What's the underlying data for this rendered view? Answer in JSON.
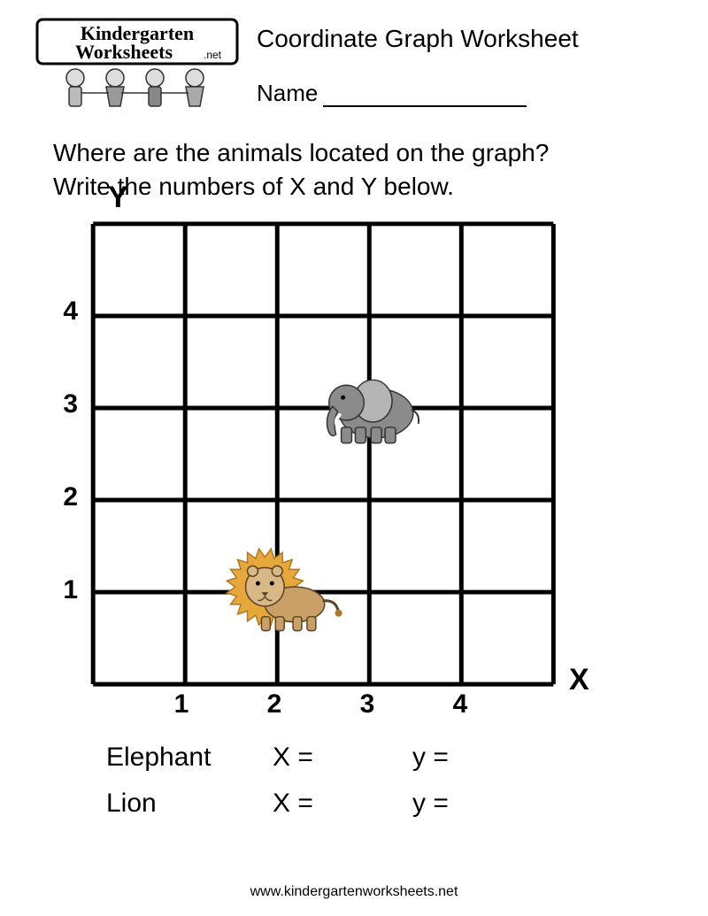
{
  "logo": {
    "top_text": "Kindergarten",
    "bottom_text": "Worksheets",
    "suffix": ".net"
  },
  "title": "Coordinate Graph Worksheet",
  "name_label": "Name",
  "instructions_line1": "Where are the animals located on the graph?",
  "instructions_line2": "Write the numbers of X and Y below.",
  "graph": {
    "y_label": "Y",
    "x_label": "X",
    "cell_size": 105,
    "cols": 5,
    "rows": 5,
    "line_color": "#000000",
    "line_width": 5,
    "background": "#ffffff",
    "y_ticks": [
      "4",
      "3",
      "2",
      "1"
    ],
    "x_ticks": [
      "1",
      "2",
      "3",
      "4"
    ],
    "tick_fontsize": 30,
    "animals": [
      {
        "name": "elephant",
        "grid_x": 3,
        "grid_y": 3,
        "body_color": "#8b8b8b",
        "ear_color": "#b5b5b5",
        "tusk_color": "#ffffff",
        "outline": "#333333"
      },
      {
        "name": "lion",
        "grid_x": 2,
        "grid_y": 1,
        "body_color": "#c9a065",
        "mane_color": "#e6a83a",
        "mane_outline": "#b07820",
        "face_color": "#d8b887",
        "outline": "#5a4326"
      }
    ]
  },
  "answers": {
    "rows": [
      {
        "label": "Elephant",
        "x_prefix": "X =",
        "y_prefix": "y ="
      },
      {
        "label": "Lion",
        "x_prefix": "X =",
        "y_prefix": "y ="
      }
    ]
  },
  "footer": "www.kindergartenworksheets.net"
}
